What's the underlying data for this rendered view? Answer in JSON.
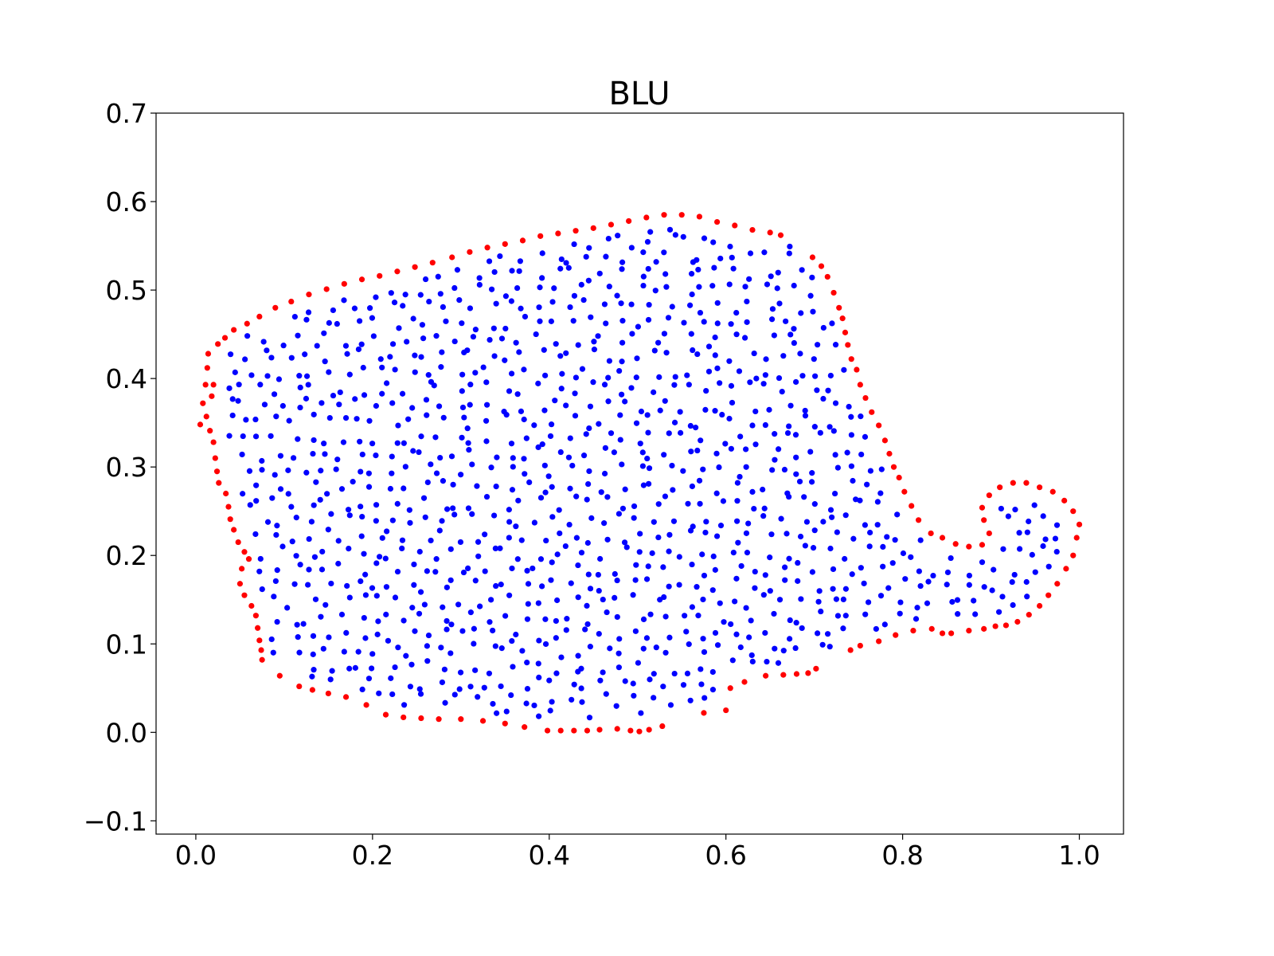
{
  "chart_data": {
    "type": "scatter",
    "title": "BLU",
    "xlabel": "",
    "ylabel": "",
    "xlim": [
      -0.045,
      1.05
    ],
    "ylim": [
      -0.115,
      0.7
    ],
    "xticks": [
      0.0,
      0.2,
      0.4,
      0.6,
      0.8,
      1.0
    ],
    "xtick_labels": [
      "0.0",
      "0.2",
      "0.4",
      "0.6",
      "0.8",
      "1.0"
    ],
    "yticks": [
      -0.1,
      0.0,
      0.1,
      0.2,
      0.3,
      0.4,
      0.5,
      0.6,
      0.7
    ],
    "ytick_labels": [
      "−0.1",
      "0.0",
      "0.1",
      "0.2",
      "0.3",
      "0.4",
      "0.5",
      "0.6",
      "0.7"
    ],
    "grid": false,
    "legend": "none",
    "boundary_color": "#ff0000",
    "interior_color": "#0000ff",
    "series": [
      {
        "color": "#ff0000",
        "points": [
          [
            0.005,
            0.348
          ],
          [
            0.008,
            0.372
          ],
          [
            0.011,
            0.393
          ],
          [
            0.013,
            0.412
          ],
          [
            0.014,
            0.428
          ],
          [
            0.02,
            0.393
          ],
          [
            0.018,
            0.38
          ],
          [
            0.012,
            0.357
          ],
          [
            0.016,
            0.341
          ],
          [
            0.02,
            0.328
          ],
          [
            0.022,
            0.31
          ],
          [
            0.024,
            0.295
          ],
          [
            0.026,
            0.282
          ],
          [
            0.034,
            0.27
          ],
          [
            0.037,
            0.255
          ],
          [
            0.039,
            0.241
          ],
          [
            0.043,
            0.229
          ],
          [
            0.048,
            0.215
          ],
          [
            0.055,
            0.204
          ],
          [
            0.06,
            0.196
          ],
          [
            0.052,
            0.185
          ],
          [
            0.05,
            0.168
          ],
          [
            0.055,
            0.155
          ],
          [
            0.063,
            0.143
          ],
          [
            0.068,
            0.132
          ],
          [
            0.07,
            0.118
          ],
          [
            0.072,
            0.104
          ],
          [
            0.074,
            0.093
          ],
          [
            0.075,
            0.082
          ],
          [
            0.095,
            0.064
          ],
          [
            0.117,
            0.052
          ],
          [
            0.132,
            0.048
          ],
          [
            0.15,
            0.044
          ],
          [
            0.17,
            0.04
          ],
          [
            0.193,
            0.031
          ],
          [
            0.215,
            0.02
          ],
          [
            0.235,
            0.017
          ],
          [
            0.255,
            0.016
          ],
          [
            0.275,
            0.015
          ],
          [
            0.3,
            0.015
          ],
          [
            0.325,
            0.013
          ],
          [
            0.35,
            0.01
          ],
          [
            0.372,
            0.006
          ],
          [
            0.398,
            0.002
          ],
          [
            0.413,
            0.002
          ],
          [
            0.428,
            0.002
          ],
          [
            0.443,
            0.002
          ],
          [
            0.457,
            0.003
          ],
          [
            0.477,
            0.004
          ],
          [
            0.492,
            0.002
          ],
          [
            0.502,
            0.001
          ],
          [
            0.513,
            0.003
          ],
          [
            0.528,
            0.007
          ],
          [
            0.575,
            0.022
          ],
          [
            0.6,
            0.025
          ],
          [
            0.605,
            0.05
          ],
          [
            0.621,
            0.057
          ],
          [
            0.645,
            0.064
          ],
          [
            0.665,
            0.065
          ],
          [
            0.68,
            0.066
          ],
          [
            0.693,
            0.067
          ],
          [
            0.702,
            0.072
          ],
          [
            0.741,
            0.093
          ],
          [
            0.752,
            0.098
          ],
          [
            0.773,
            0.103
          ],
          [
            0.792,
            0.11
          ],
          [
            0.812,
            0.115
          ],
          [
            0.833,
            0.117
          ],
          [
            0.845,
            0.112
          ],
          [
            0.855,
            0.112
          ],
          [
            0.875,
            0.115
          ],
          [
            0.892,
            0.117
          ],
          [
            0.905,
            0.12
          ],
          [
            0.917,
            0.121
          ],
          [
            0.93,
            0.125
          ],
          [
            0.943,
            0.133
          ],
          [
            0.955,
            0.143
          ],
          [
            0.965,
            0.155
          ],
          [
            0.975,
            0.168
          ],
          [
            0.985,
            0.185
          ],
          [
            0.993,
            0.2
          ],
          [
            0.997,
            0.22
          ],
          [
            1.0,
            0.235
          ],
          [
            0.993,
            0.25
          ],
          [
            0.983,
            0.262
          ],
          [
            0.97,
            0.272
          ],
          [
            0.955,
            0.277
          ],
          [
            0.94,
            0.282
          ],
          [
            0.925,
            0.282
          ],
          [
            0.91,
            0.277
          ],
          [
            0.898,
            0.268
          ],
          [
            0.89,
            0.254
          ],
          [
            0.892,
            0.24
          ],
          [
            0.898,
            0.225
          ],
          [
            0.89,
            0.212
          ],
          [
            0.875,
            0.21
          ],
          [
            0.86,
            0.213
          ],
          [
            0.845,
            0.22
          ],
          [
            0.832,
            0.225
          ],
          [
            0.818,
            0.24
          ],
          [
            0.81,
            0.256
          ],
          [
            0.802,
            0.272
          ],
          [
            0.796,
            0.288
          ],
          [
            0.79,
            0.3
          ],
          [
            0.785,
            0.315
          ],
          [
            0.78,
            0.33
          ],
          [
            0.773,
            0.347
          ],
          [
            0.765,
            0.362
          ],
          [
            0.758,
            0.378
          ],
          [
            0.752,
            0.393
          ],
          [
            0.748,
            0.41
          ],
          [
            0.742,
            0.422
          ],
          [
            0.738,
            0.438
          ],
          [
            0.735,
            0.452
          ],
          [
            0.732,
            0.468
          ],
          [
            0.728,
            0.48
          ],
          [
            0.722,
            0.497
          ],
          [
            0.715,
            0.515
          ],
          [
            0.708,
            0.527
          ],
          [
            0.698,
            0.537
          ],
          [
            0.662,
            0.562
          ],
          [
            0.65,
            0.565
          ],
          [
            0.63,
            0.568
          ],
          [
            0.61,
            0.573
          ],
          [
            0.59,
            0.577
          ],
          [
            0.57,
            0.583
          ],
          [
            0.55,
            0.585
          ],
          [
            0.53,
            0.585
          ],
          [
            0.51,
            0.582
          ],
          [
            0.49,
            0.578
          ],
          [
            0.47,
            0.574
          ],
          [
            0.45,
            0.57
          ],
          [
            0.43,
            0.567
          ],
          [
            0.41,
            0.564
          ],
          [
            0.39,
            0.561
          ],
          [
            0.37,
            0.556
          ],
          [
            0.35,
            0.552
          ],
          [
            0.33,
            0.548
          ],
          [
            0.31,
            0.543
          ],
          [
            0.29,
            0.537
          ],
          [
            0.268,
            0.531
          ],
          [
            0.248,
            0.526
          ],
          [
            0.228,
            0.521
          ],
          [
            0.208,
            0.516
          ],
          [
            0.188,
            0.512
          ],
          [
            0.168,
            0.507
          ],
          [
            0.148,
            0.501
          ],
          [
            0.128,
            0.495
          ],
          [
            0.108,
            0.487
          ],
          [
            0.09,
            0.48
          ],
          [
            0.072,
            0.47
          ],
          [
            0.058,
            0.462
          ],
          [
            0.043,
            0.455
          ],
          [
            0.033,
            0.446
          ],
          [
            0.025,
            0.439
          ]
        ]
      }
    ]
  }
}
